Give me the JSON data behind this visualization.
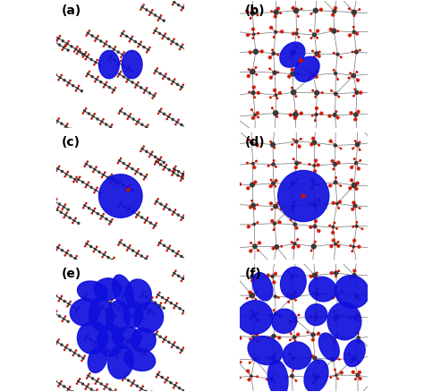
{
  "figure_width": 4.74,
  "figure_height": 4.38,
  "dpi": 100,
  "panels": [
    "(a)",
    "(b)",
    "(c)",
    "(d)",
    "(e)",
    "(f)"
  ],
  "panel_label_fontsize": 10,
  "panel_label_color": "#000000",
  "background_color": "#ffffff",
  "border_color": "#000000",
  "atom_gray": "#3a3a3a",
  "atom_red": "#cc1100",
  "orbital_blue": "#1010dd",
  "orbital_alpha": 0.92,
  "bond_color": "#3a3a3a"
}
